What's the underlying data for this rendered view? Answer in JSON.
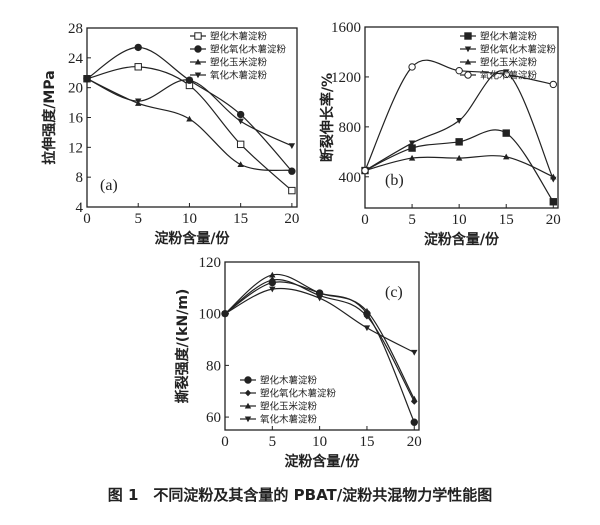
{
  "caption": "图 1　不同淀粉及其含量的 PBAT/淀粉共混物力学性能图",
  "chart_data": [
    {
      "type": "line",
      "panel_label": "(a)",
      "xlabel": "淀粉含量/份",
      "ylabel": "拉伸强度/MPa",
      "xlim": [
        0,
        20.5
      ],
      "ylim": [
        4,
        28
      ],
      "xticks": [
        0,
        5,
        10,
        15,
        20
      ],
      "yticks": [
        4,
        8,
        12,
        16,
        20,
        24,
        28
      ],
      "legend_position": "top-right",
      "x": [
        0,
        5,
        10,
        15,
        20
      ],
      "series": [
        {
          "name": "塑化木薯淀粉",
          "marker": "open-square",
          "values": [
            21.2,
            22.8,
            20.3,
            12.4,
            6.2
          ]
        },
        {
          "name": "塑化氧化木薯淀粉",
          "marker": "filled-circle",
          "values": [
            21.2,
            25.4,
            21.0,
            16.4,
            8.8
          ]
        },
        {
          "name": "塑化玉米淀粉",
          "marker": "triangle-up",
          "values": [
            21.2,
            17.9,
            15.8,
            9.7,
            8.9
          ]
        },
        {
          "name": "氧化木薯淀粉",
          "marker": "triangle-down",
          "values": [
            21.2,
            18.2,
            21.0,
            15.5,
            12.2
          ]
        }
      ]
    },
    {
      "type": "line",
      "panel_label": "(b)",
      "xlabel": "淀粉含量/份",
      "ylabel": "断裂伸长率/%",
      "xlim": [
        0,
        20.5
      ],
      "ylim": [
        150,
        1600
      ],
      "xticks": [
        0,
        5,
        10,
        15,
        20
      ],
      "yticks": [
        400,
        800,
        1200,
        1600
      ],
      "legend_position": "top-right",
      "x": [
        0,
        5,
        10,
        15,
        20
      ],
      "series": [
        {
          "name": "塑化木薯淀粉",
          "marker": "filled-square",
          "values": [
            450,
            630,
            680,
            750,
            200
          ]
        },
        {
          "name": "塑化氧化木薯淀粉",
          "marker": "triangle-down",
          "values": [
            450,
            670,
            850,
            1240,
            380
          ]
        },
        {
          "name": "塑化玉米淀粉",
          "marker": "triangle-up",
          "values": [
            450,
            550,
            550,
            560,
            400
          ]
        },
        {
          "name": "氧化木薯淀粉",
          "marker": "open-circle",
          "values": [
            450,
            1280,
            1250,
            1220,
            1140
          ]
        }
      ]
    },
    {
      "type": "line",
      "panel_label": "(c)",
      "xlabel": "淀粉含量/份",
      "ylabel": "撕裂强度/(kN/m)",
      "xlim": [
        0,
        20.5
      ],
      "ylim": [
        55,
        120
      ],
      "xticks": [
        0,
        5,
        10,
        15,
        20
      ],
      "yticks": [
        60,
        80,
        100,
        120
      ],
      "legend_position": "bottom-left",
      "x": [
        0,
        5,
        10,
        15,
        20
      ],
      "series": [
        {
          "name": "塑化木薯淀粉",
          "marker": "filled-circle",
          "values": [
            100,
            112,
            108,
            100,
            58
          ]
        },
        {
          "name": "塑化氧化木薯淀粉",
          "marker": "star",
          "values": [
            100,
            113,
            107,
            99,
            66
          ]
        },
        {
          "name": "塑化玉米淀粉",
          "marker": "triangle-up",
          "values": [
            100,
            115,
            108,
            101,
            67
          ]
        },
        {
          "name": "氧化木薯淀粉",
          "marker": "triangle-down",
          "values": [
            100,
            109.5,
            106,
            94.5,
            85
          ]
        }
      ]
    }
  ]
}
